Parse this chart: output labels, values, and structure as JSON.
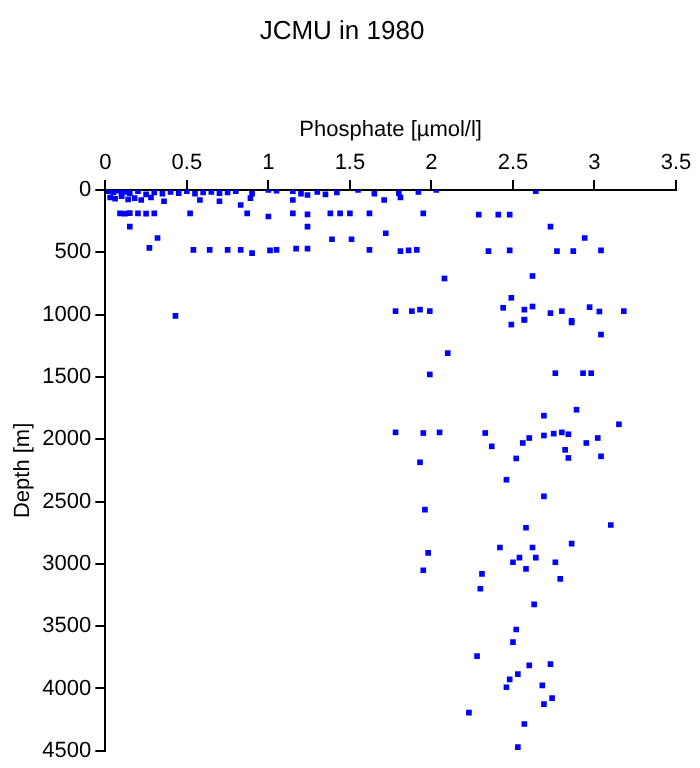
{
  "chart_data": {
    "type": "scatter",
    "title": "JCMU in 1980",
    "xlabel": "Phosphate [µmol/l]",
    "ylabel": "Depth [m]",
    "xlim": [
      0,
      3.5
    ],
    "xticks": [
      0,
      0.5,
      1,
      1.5,
      2,
      2.5,
      3,
      3.5
    ],
    "ylim": [
      4500,
      0
    ],
    "yticks": [
      0,
      500,
      1000,
      1500,
      2000,
      2500,
      3000,
      3500,
      4000,
      4500
    ],
    "grid": false,
    "legend": false,
    "marker": "square",
    "series": [
      {
        "color": "#0000ff",
        "x": [
          0.02,
          0.05,
          0.08,
          0.1,
          0.12,
          0.15,
          0.2,
          0.25,
          0.3,
          0.35,
          0.4,
          0.45,
          0.5,
          0.55,
          0.6,
          0.65,
          0.7,
          0.75,
          0.8,
          0.9,
          1.0,
          1.05,
          1.15,
          1.2,
          1.3,
          1.35,
          1.42,
          1.55,
          1.65,
          1.8,
          1.92,
          2.03,
          2.64,
          0.03,
          0.06,
          0.1,
          0.14,
          0.18,
          0.22,
          0.28,
          0.36,
          0.58,
          0.7,
          0.83,
          0.89,
          1.24,
          1.15,
          1.71,
          1.81,
          0.09,
          0.12,
          0.15,
          0.2,
          0.25,
          0.3,
          0.52,
          0.87,
          1.0,
          1.15,
          1.24,
          1.38,
          1.44,
          1.5,
          1.62,
          1.95,
          2.29,
          2.41,
          2.48,
          0.15,
          0.32,
          0.27,
          1.24,
          1.39,
          1.51,
          1.72,
          2.73,
          2.94,
          0.54,
          0.64,
          0.75,
          0.83,
          0.9,
          1.01,
          1.05,
          1.17,
          1.24,
          1.62,
          1.81,
          1.86,
          1.91,
          2.35,
          2.48,
          2.77,
          2.87,
          3.04,
          2.62,
          2.08,
          0.43,
          1.78,
          1.88,
          1.93,
          1.99,
          2.44,
          2.49,
          2.57,
          2.62,
          2.73,
          2.8,
          2.86,
          2.97,
          3.03,
          3.18,
          2.49,
          2.57,
          2.57,
          2.86,
          3.04,
          2.1,
          1.99,
          2.76,
          2.93,
          2.98,
          2.89,
          2.69,
          3.15,
          1.78,
          1.95,
          2.05,
          2.33,
          2.37,
          2.56,
          2.6,
          2.69,
          2.75,
          2.8,
          2.84,
          3.02,
          2.95,
          2.82,
          3.04,
          1.93,
          2.52,
          2.84,
          2.46,
          2.69,
          1.96,
          2.58,
          3.1,
          2.42,
          2.62,
          2.86,
          1.98,
          2.54,
          2.64,
          2.5,
          2.76,
          1.95,
          2.31,
          2.3,
          2.58,
          2.79,
          2.63,
          2.52,
          2.5,
          2.28,
          2.6,
          2.73,
          2.53,
          2.48,
          2.46,
          2.68,
          2.74,
          2.69,
          2.23,
          2.57,
          2.53
        ],
        "values": [
          10,
          20,
          5,
          30,
          15,
          25,
          10,
          35,
          20,
          30,
          15,
          25,
          10,
          30,
          20,
          15,
          25,
          20,
          10,
          30,
          0,
          5,
          10,
          30,
          15,
          35,
          20,
          0,
          30,
          25,
          15,
          0,
          10,
          60,
          70,
          50,
          75,
          65,
          80,
          60,
          90,
          80,
          90,
          120,
          65,
          40,
          80,
          80,
          60,
          187,
          190,
          185,
          187,
          190,
          187,
          187,
          187,
          213,
          187,
          195,
          187,
          187,
          187,
          187,
          187,
          198,
          198,
          198,
          294,
          385,
          465,
          294,
          395,
          395,
          347,
          294,
          385,
          480,
          480,
          480,
          480,
          507,
          485,
          480,
          470,
          470,
          480,
          490,
          485,
          480,
          490,
          484,
          490,
          490,
          484,
          690,
          710,
          1010,
          972,
          972,
          960,
          972,
          945,
          865,
          960,
          935,
          988,
          972,
          1050,
          940,
          975,
          972,
          1080,
          1040,
          1042,
          1063,
          1160,
          1309,
          1480,
          1470,
          1470,
          1470,
          1763,
          1811,
          1880,
          1945,
          1950,
          1945,
          1950,
          2057,
          2030,
          1990,
          1970,
          1955,
          1945,
          1960,
          1990,
          2030,
          2085,
          2137,
          2185,
          2154,
          2150,
          2325,
          2458,
          2565,
          2710,
          2688,
          2869,
          2869,
          2838,
          2912,
          2950,
          2950,
          2987,
          2987,
          3051,
          3080,
          3200,
          3040,
          3120,
          3325,
          3527,
          3628,
          3740,
          3815,
          3805,
          3885,
          3927,
          3990,
          3975,
          4077,
          4125,
          4194,
          4285,
          4470
        ]
      }
    ]
  }
}
